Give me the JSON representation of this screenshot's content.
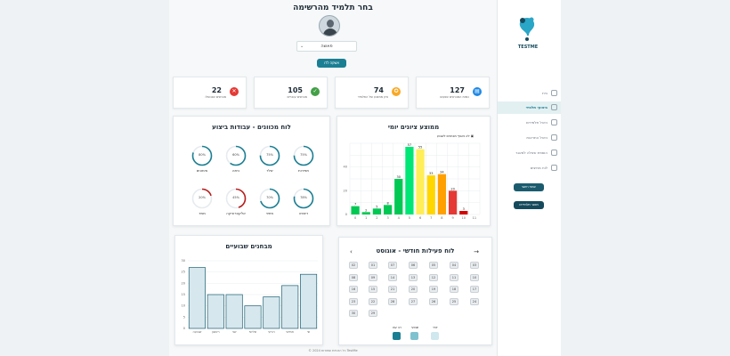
{
  "header": {
    "title": "בחר תלמיד מהרשימה",
    "select_value": "פאשה",
    "confirm_label": "אשקה לדו"
  },
  "stats": [
    {
      "value": "22",
      "label": "מבחנים שנכשלו",
      "icon": "x-circle-icon",
      "color": "#e53935"
    },
    {
      "value": "105",
      "label": "מבחנים עוברים",
      "icon": "check-circle-icon",
      "color": "#43a047"
    },
    {
      "value": "74",
      "label": "ציון ממוצע של התלמיד",
      "icon": "medal-icon",
      "color": "#f9a825"
    },
    {
      "value": "127",
      "label": "כמות המבחנים שנעשו",
      "icon": "document-icon",
      "color": "#1e88e5"
    }
  ],
  "gauges_card": {
    "title": "לוח מכוונים - עבודות ביצוע",
    "items": [
      {
        "label": "אימונים",
        "pct": "80%",
        "value": 80,
        "color": "#1b7f93"
      },
      {
        "label": "כיתה",
        "pct": "60%",
        "value": 60,
        "color": "#1b7f93"
      },
      {
        "label": "שלד",
        "pct": "75%",
        "value": 75,
        "color": "#1b7f93"
      },
      {
        "label": "תפירות",
        "pct": "75%",
        "value": 75,
        "color": "#1b7f93"
      },
      {
        "label": "ממד",
        "pct": "20%",
        "value": 20,
        "color": "#b71c1c"
      },
      {
        "label": "אלקטרוניקה",
        "pct": "45%",
        "value": 45,
        "color": "#b71c1c"
      },
      {
        "label": "מיפוי",
        "pct": "70%",
        "value": 70,
        "color": "#1b7f93"
      },
      {
        "label": "ריצפה",
        "pct": "78%",
        "value": 78,
        "color": "#1b7f93"
      }
    ]
  },
  "daily_chart": {
    "title": "ממוצע ציונים יומי",
    "note": "לא נאסף מבחנים לשבוע",
    "chart_data": {
      "type": "bar",
      "categories": [
        "0",
        "1",
        "2",
        "3",
        "4",
        "5",
        "6",
        "7",
        "8",
        "9",
        "10",
        "11"
      ],
      "values": [
        7,
        2,
        5,
        8,
        30,
        57,
        55,
        33,
        34,
        20,
        3,
        0
      ],
      "ylim": [
        0,
        60
      ],
      "yticks": [
        "0",
        "20",
        "40"
      ],
      "colors": [
        "#00c853",
        "#00c853",
        "#00c853",
        "#00c853",
        "#00c853",
        "#00e676",
        "#ffee58",
        "#ffd600",
        "#ffa000",
        "#e53935",
        "#d50000",
        "#d50000"
      ]
    }
  },
  "weekly_chart": {
    "title": "מבחנים שבועיים",
    "chart_data": {
      "type": "bar",
      "categories": [
        "שבועה",
        "ראשון",
        "שני",
        "שלישי",
        "רביעי",
        "חמישי",
        "שי"
      ],
      "values": [
        27,
        15,
        15,
        10,
        14,
        19,
        24
      ],
      "ylim": [
        0,
        30
      ],
      "yticks": [
        "0",
        "5",
        "10",
        "15",
        "20",
        "25",
        "30"
      ],
      "fill": "#d7e7ee",
      "stroke": "#1b5f73"
    }
  },
  "calendar": {
    "title": "לוח פעילות חודשי - אוגוסט",
    "prev": "‹",
    "next": "→",
    "columns": [
      [
        "02",
        "08",
        "16",
        "23",
        "30"
      ],
      [
        "01",
        "09",
        "15",
        "22",
        "29"
      ],
      [
        "07",
        "14",
        "21",
        "28"
      ],
      [
        "06",
        "13",
        "20",
        "27"
      ],
      [
        "05",
        "12",
        "19",
        "26"
      ],
      [
        "04",
        "11",
        "18",
        "25"
      ],
      [
        "03",
        "10",
        "17",
        "24"
      ]
    ],
    "legend": [
      {
        "label": "רב עם",
        "color": "#1b7f93"
      },
      {
        "label": "שבועי",
        "color": "#7fc2cf"
      },
      {
        "label": "יומי",
        "color": "#cfe8ee"
      }
    ]
  },
  "footer": "© 2024 כל הזכויות שמורות TestMe",
  "sidebar": {
    "logo_text": "TESTME",
    "items": [
      {
        "label": "בית",
        "active": false
      },
      {
        "label": "ביצועי תלמיד",
        "active": true
      },
      {
        "label": "ניהול תלמידים",
        "active": false
      },
      {
        "label": "ניהול התראות",
        "active": false
      },
      {
        "label": "הוספת שאלה למאגר",
        "active": false
      },
      {
        "label": "לוח מחיצים",
        "active": false
      }
    ],
    "btn_primary": "עמוד ראשי",
    "btn_secondary": "מאגר תלמידים"
  }
}
